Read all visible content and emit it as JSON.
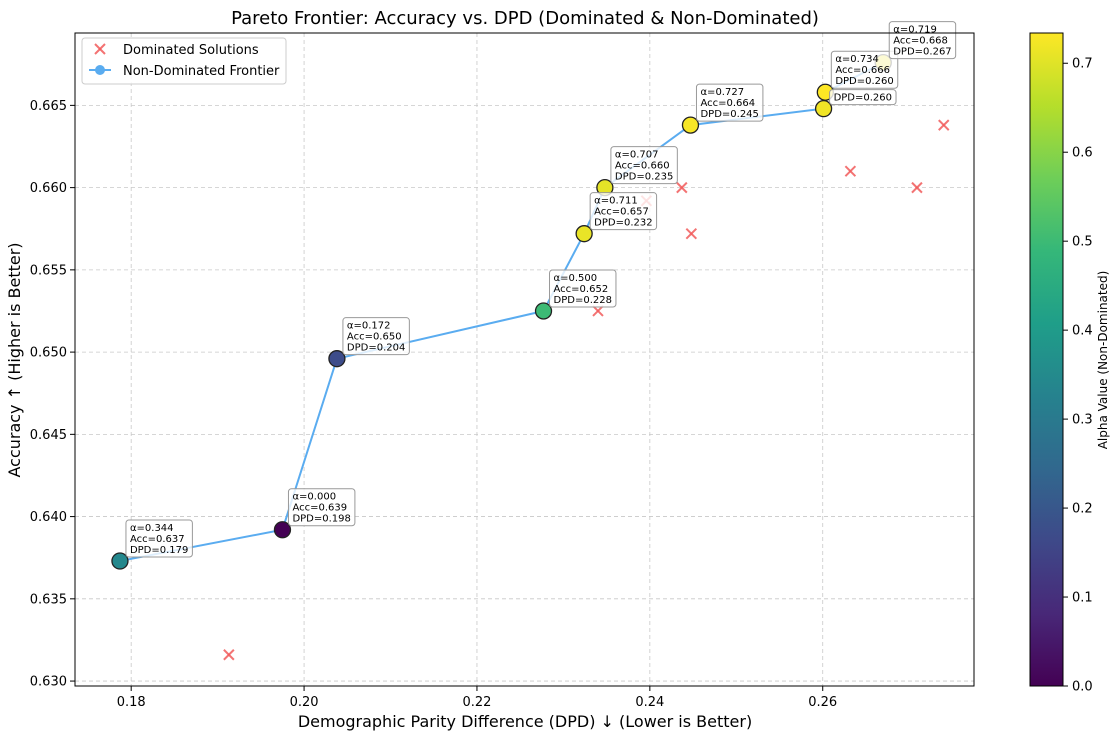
{
  "chart_data": {
    "type": "scatter",
    "title": "Pareto Frontier: Accuracy vs. DPD (Dominated & Non-Dominated)",
    "xlabel": "Demographic Parity Difference (DPD) ↓ (Lower is Better)",
    "ylabel": "Accuracy ↑ (Higher is Better)",
    "xlim": [
      0.1735,
      0.2775
    ],
    "ylim": [
      0.6297,
      0.6694
    ],
    "xticks": [
      0.18,
      0.2,
      0.22,
      0.24,
      0.26
    ],
    "xtick_labels": [
      "0.18",
      "0.20",
      "0.22",
      "0.24",
      "0.26"
    ],
    "yticks": [
      0.63,
      0.635,
      0.64,
      0.645,
      0.65,
      0.655,
      0.66,
      0.665
    ],
    "ytick_labels": [
      "0.630",
      "0.635",
      "0.640",
      "0.645",
      "0.650",
      "0.655",
      "0.660",
      "0.665"
    ],
    "grid": true,
    "legend": {
      "position": "top-left",
      "entries": [
        "Dominated Solutions",
        "Non-Dominated Frontier"
      ]
    },
    "colorbar": {
      "label": "Alpha Value (Non-Dominated)",
      "range": [
        0.0,
        0.734
      ],
      "colormap": "viridis",
      "ticks": [
        0.0,
        0.1,
        0.2,
        0.3,
        0.4,
        0.5,
        0.6,
        0.7
      ],
      "tick_labels": [
        "0.0",
        "0.1",
        "0.2",
        "0.3",
        "0.4",
        "0.5",
        "0.6",
        "0.7"
      ]
    },
    "series": [
      {
        "name": "Dominated Solutions",
        "marker": "x",
        "color": "#f15a5a",
        "points": [
          {
            "x": 0.1913,
            "y": 0.6316
          },
          {
            "x": 0.234,
            "y": 0.6525
          },
          {
            "x": 0.2396,
            "y": 0.6592
          },
          {
            "x": 0.2437,
            "y": 0.66
          },
          {
            "x": 0.2448,
            "y": 0.6572
          },
          {
            "x": 0.2632,
            "y": 0.661
          },
          {
            "x": 0.2709,
            "y": 0.66
          },
          {
            "x": 0.274,
            "y": 0.6638
          }
        ]
      },
      {
        "name": "Non-Dominated Frontier",
        "line_color": "#5aacf0",
        "points": [
          {
            "x": 0.1787,
            "y": 0.6373,
            "alpha": 0.344,
            "label": [
              "α=0.344",
              "Acc=0.637",
              "DPD=0.179"
            ]
          },
          {
            "x": 0.1975,
            "y": 0.6392,
            "alpha": 0.0,
            "label": [
              "α=0.000",
              "Acc=0.639",
              "DPD=0.198"
            ]
          },
          {
            "x": 0.2038,
            "y": 0.6496,
            "alpha": 0.172,
            "label": [
              "α=0.172",
              "Acc=0.650",
              "DPD=0.204"
            ]
          },
          {
            "x": 0.2277,
            "y": 0.6525,
            "alpha": 0.5,
            "label": [
              "α=0.500",
              "Acc=0.652",
              "DPD=0.228"
            ]
          },
          {
            "x": 0.2324,
            "y": 0.6572,
            "alpha": 0.711,
            "label": [
              "α=0.711",
              "Acc=0.657",
              "DPD=0.232"
            ]
          },
          {
            "x": 0.2348,
            "y": 0.66,
            "alpha": 0.707,
            "label": [
              "α=0.707",
              "Acc=0.660",
              "DPD=0.235"
            ]
          },
          {
            "x": 0.2447,
            "y": 0.6638,
            "alpha": 0.727,
            "label": [
              "α=0.727",
              "Acc=0.664",
              "DPD=0.245"
            ]
          },
          {
            "x": 0.2601,
            "y": 0.6648,
            "alpha": 0.72,
            "label": [
              "",
              "",
              "DPD=0.260"
            ]
          },
          {
            "x": 0.2603,
            "y": 0.6658,
            "alpha": 0.734,
            "label": [
              "α=0.734",
              "Acc=0.666",
              "DPD=0.260"
            ]
          },
          {
            "x": 0.267,
            "y": 0.6676,
            "alpha": 0.719,
            "label": [
              "α=0.719",
              "Acc=0.668",
              "DPD=0.267"
            ]
          }
        ]
      }
    ]
  }
}
